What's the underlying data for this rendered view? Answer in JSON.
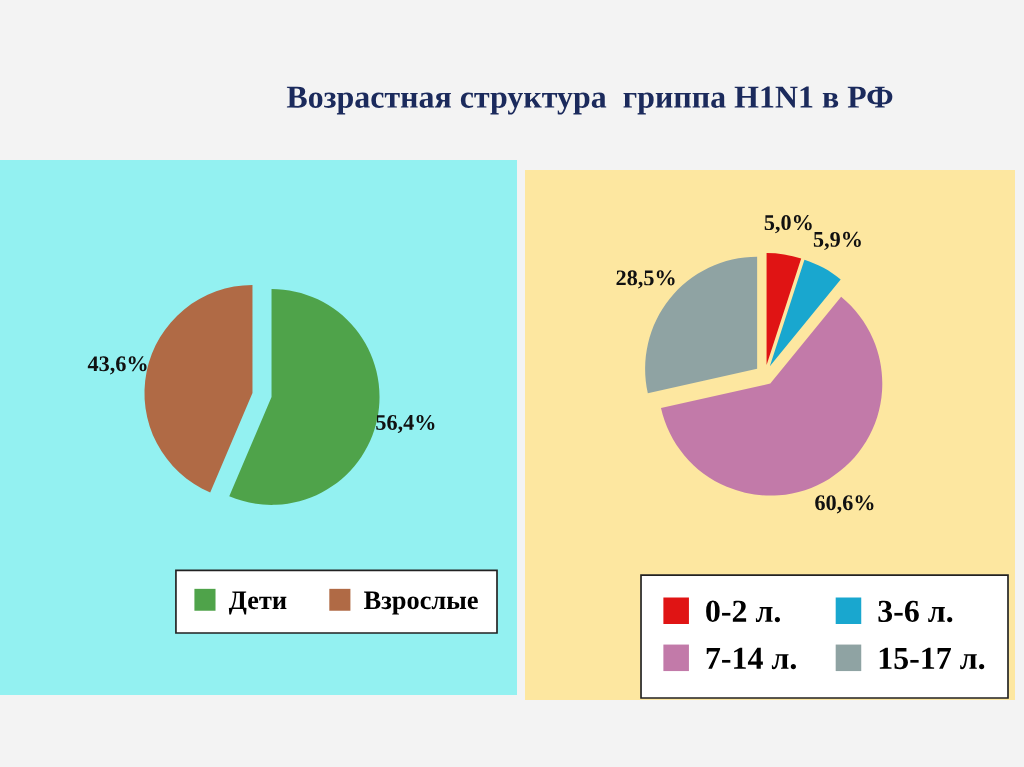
{
  "chart_data": [
    {
      "type": "pie",
      "title": "Возрастная структура  гриппа H1N1 в РФ",
      "categories": [
        "Дети",
        "Взрослые"
      ],
      "values": [
        56.4,
        43.6
      ],
      "colors": [
        "#4fa34a",
        "#b06a45"
      ],
      "value_labels": [
        "56,4%",
        "43,6%"
      ],
      "legend": "bottom right"
    },
    {
      "type": "pie",
      "categories": [
        "0-2 л.",
        "3-6 л.",
        "7-14 л.",
        "15-17 л."
      ],
      "values": [
        5.0,
        5.9,
        60.6,
        28.5
      ],
      "colors": [
        "#e01414",
        "#19a7cf",
        "#c27aa9",
        "#8fa3a3"
      ],
      "value_labels": [
        "5,0%",
        "5,9%",
        "60,6%",
        "28,5%"
      ],
      "legend": "bottom right"
    }
  ]
}
